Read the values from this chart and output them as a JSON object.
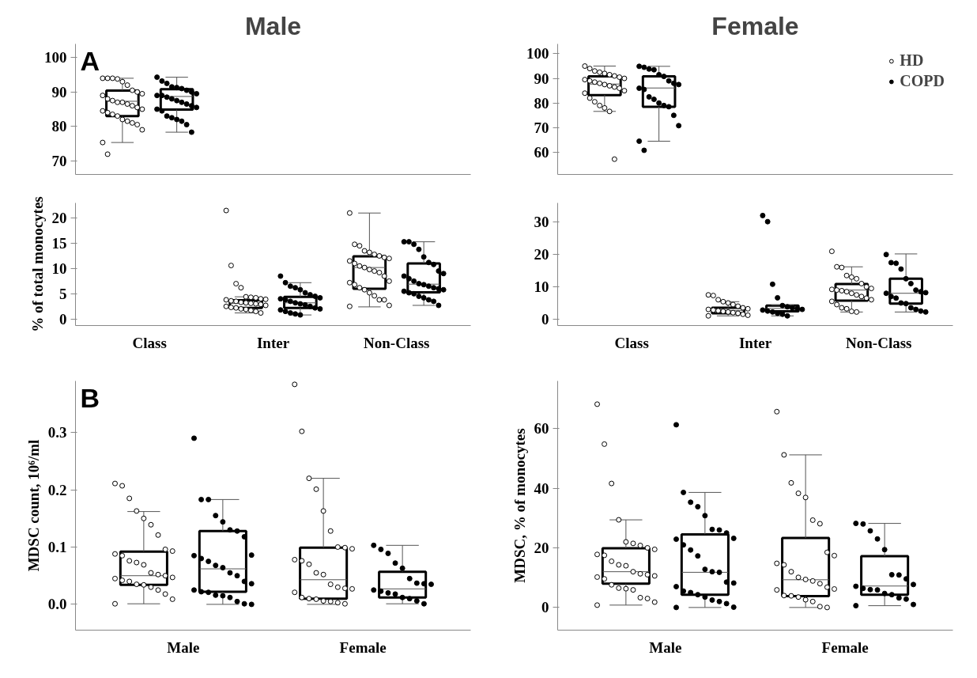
{
  "chart_data": [
    {
      "type": "box",
      "title": "Male",
      "annotations": [
        "A"
      ],
      "categories": [
        "Class",
        "Inter",
        "Non-Class"
      ],
      "ylim": [
        66,
        104
      ],
      "yticks": [
        70,
        80,
        90,
        100
      ],
      "tick_labels": "y",
      "marker": "circle",
      "series": [
        {
          "boxes": [
            {
              "low": 75.3,
              "q1": 83.0,
              "median": 87.3,
              "q3": 90.4,
              "high": 94
            },
            null,
            null
          ]
        },
        {
          "boxes": [
            {
              "low": 78.3,
              "q1": 84.9,
              "median": 88.7,
              "q3": 90.8,
              "high": 94.3
            },
            null,
            null
          ]
        },
        {
          "type": "scatter",
          "color": "#ffffff",
          "x": [
            "Class",
            "Class",
            "Class",
            "Class",
            "Class",
            "Class",
            "Class",
            "Class",
            "Class",
            "Class",
            "Class",
            "Class",
            "Class",
            "Class",
            "Class",
            "Class",
            "Class",
            "Class",
            "Class",
            "Class",
            "Class",
            "Class",
            "Class",
            "Class",
            "Class",
            "Class",
            "Class",
            "Class",
            "Class"
          ],
          "values": [
            94,
            94,
            94,
            93.8,
            93,
            92,
            90.5,
            90,
            89.5,
            89,
            88,
            87.5,
            87,
            87,
            86.5,
            86,
            85.5,
            85,
            84.5,
            84,
            83.5,
            83,
            82,
            81.5,
            81,
            80.5,
            79,
            75.3,
            71.9
          ]
        },
        {
          "type": "scatter",
          "color": "#000000",
          "x": [
            "Class",
            "Class",
            "Class",
            "Class",
            "Class",
            "Class",
            "Class",
            "Class",
            "Class",
            "Class",
            "Class",
            "Class",
            "Class",
            "Class",
            "Class",
            "Class",
            "Class",
            "Class",
            "Class",
            "Class",
            "Class",
            "Class",
            "Class",
            "Class",
            "Class",
            "Class"
          ],
          "values": [
            94.3,
            93.2,
            92.5,
            91.5,
            91.3,
            91,
            90.5,
            90,
            89.5,
            89,
            89,
            88.5,
            88,
            87.5,
            87,
            86.5,
            86,
            85.5,
            85,
            84.5,
            83,
            82.5,
            82,
            81.5,
            80.5,
            78.3
          ]
        }
      ]
    },
    {
      "type": "box",
      "ylabel": "% of total monocytes",
      "categories": [
        "Class",
        "Inter",
        "Non-Class"
      ],
      "ylim": [
        -1.3,
        23
      ],
      "yticks": [
        0,
        5,
        10,
        15,
        20
      ],
      "marker": "circle",
      "series": [
        {
          "boxes": [
            null,
            {
              "low": 1.2,
              "q1": 2.2,
              "median": 3.1,
              "q3": 3.7,
              "high": 4.4
            },
            {
              "low": 2.4,
              "q1": 6.0,
              "median": 10.2,
              "q3": 12.4,
              "high": 21
            }
          ]
        },
        {
          "boxes": [
            null,
            {
              "low": 0.8,
              "q1": 2.2,
              "median": 3.2,
              "q3": 4.4,
              "high": 7.2
            },
            {
              "low": 2.7,
              "q1": 5.3,
              "median": 6.9,
              "q3": 11.0,
              "high": 15.3
            }
          ]
        },
        {
          "type": "scatter",
          "color": "#ffffff",
          "x": [
            "Inter",
            "Inter",
            "Inter",
            "Inter",
            "Inter",
            "Inter",
            "Inter",
            "Inter",
            "Inter",
            "Inter",
            "Inter",
            "Inter",
            "Inter",
            "Inter",
            "Inter",
            "Inter",
            "Inter",
            "Inter",
            "Inter",
            "Inter",
            "Inter",
            "Inter",
            "Inter",
            "Inter",
            "Inter",
            "Inter",
            "Non-Class",
            "Non-Class",
            "Non-Class",
            "Non-Class",
            "Non-Class",
            "Non-Class",
            "Non-Class",
            "Non-Class",
            "Non-Class",
            "Non-Class",
            "Non-Class",
            "Non-Class",
            "Non-Class",
            "Non-Class",
            "Non-Class",
            "Non-Class",
            "Non-Class",
            "Non-Class",
            "Non-Class",
            "Non-Class",
            "Non-Class",
            "Non-Class",
            "Non-Class",
            "Non-Class",
            "Non-Class",
            "Non-Class",
            "Non-Class",
            "Non-Class"
          ],
          "values": [
            21.5,
            10.6,
            7.0,
            6.2,
            4.4,
            4.3,
            4.2,
            4.0,
            3.9,
            3.8,
            3.6,
            3.5,
            3.3,
            3.2,
            3.1,
            3.0,
            2.9,
            2.7,
            2.5,
            2.3,
            2.2,
            2.0,
            1.9,
            1.7,
            1.5,
            1.2,
            21,
            14.8,
            14.5,
            13.5,
            13.2,
            12.8,
            12.5,
            12.2,
            12,
            11.5,
            11,
            10.5,
            10.2,
            9.8,
            9.5,
            9.2,
            8.5,
            7.5,
            7.2,
            6.8,
            6.2,
            5.8,
            5.2,
            4.6,
            3.8,
            3.8,
            2.7,
            2.5
          ]
        },
        {
          "type": "scatter",
          "color": "#000000",
          "x": [
            "Inter",
            "Inter",
            "Inter",
            "Inter",
            "Inter",
            "Inter",
            "Inter",
            "Inter",
            "Inter",
            "Inter",
            "Inter",
            "Inter",
            "Inter",
            "Inter",
            "Inter",
            "Inter",
            "Inter",
            "Inter",
            "Inter",
            "Inter",
            "Inter",
            "Inter",
            "Inter",
            "Non-Class",
            "Non-Class",
            "Non-Class",
            "Non-Class",
            "Non-Class",
            "Non-Class",
            "Non-Class",
            "Non-Class",
            "Non-Class",
            "Non-Class",
            "Non-Class",
            "Non-Class",
            "Non-Class",
            "Non-Class",
            "Non-Class",
            "Non-Class",
            "Non-Class",
            "Non-Class",
            "Non-Class",
            "Non-Class",
            "Non-Class",
            "Non-Class",
            "Non-Class",
            "Non-Class",
            "Non-Class",
            "Non-Class"
          ],
          "values": [
            8.5,
            7.2,
            6.5,
            6.2,
            5.8,
            5.2,
            4.8,
            4.5,
            4.2,
            4.0,
            3.8,
            3.5,
            3.2,
            3.0,
            2.8,
            2.5,
            2.2,
            2.0,
            1.8,
            1.5,
            1.2,
            1.0,
            0.8,
            15.3,
            15.3,
            14.8,
            13.8,
            12.3,
            11.2,
            10.8,
            9.5,
            9.0,
            8.5,
            8.0,
            7.5,
            7.0,
            6.8,
            6.5,
            6.2,
            6.0,
            5.8,
            5.5,
            5.2,
            5.0,
            4.5,
            4.2,
            3.8,
            3.5,
            2.7
          ]
        }
      ]
    },
    {
      "type": "box",
      "title": "Female",
      "categories": [
        "Class",
        "Inter",
        "Non-Class"
      ],
      "ylim": [
        51,
        104
      ],
      "yticks": [
        60,
        70,
        80,
        90,
        100
      ],
      "tick_labels": "y",
      "marker": "circle",
      "legend": "top right",
      "series": [
        {
          "boxes": [
            {
              "low": 76.6,
              "q1": 83.2,
              "median": 87.7,
              "q3": 90.8,
              "high": 95
            },
            null,
            null
          ]
        },
        {
          "boxes": [
            {
              "low": 64.5,
              "q1": 78.5,
              "median": 86.1,
              "q3": 90.8,
              "high": 94.9
            },
            null,
            null
          ]
        },
        {
          "type": "scatter",
          "name": "HD",
          "color": "#ffffff",
          "x": [
            "Class",
            "Class",
            "Class",
            "Class",
            "Class",
            "Class",
            "Class",
            "Class",
            "Class",
            "Class",
            "Class",
            "Class",
            "Class",
            "Class",
            "Class",
            "Class",
            "Class",
            "Class",
            "Class",
            "Class",
            "Class",
            "Class",
            "Class",
            "Class",
            "Class"
          ],
          "values": [
            95,
            94,
            93,
            92.5,
            92,
            91.5,
            91,
            90.5,
            90,
            89.5,
            89,
            88.5,
            88,
            87.5,
            87,
            86.5,
            86,
            85,
            84,
            82,
            80.5,
            79,
            78,
            76.6,
            57.2
          ]
        },
        {
          "type": "scatter",
          "name": "COPD",
          "color": "#000000",
          "x": [
            "Class",
            "Class",
            "Class",
            "Class",
            "Class",
            "Class",
            "Class",
            "Class",
            "Class",
            "Class",
            "Class",
            "Class",
            "Class",
            "Class",
            "Class",
            "Class",
            "Class",
            "Class",
            "Class",
            "Class"
          ],
          "values": [
            94.9,
            94.5,
            93.8,
            93.5,
            91.5,
            90.8,
            89,
            88,
            87.5,
            86,
            85.5,
            82.5,
            81.5,
            80,
            79,
            78.5,
            75,
            70.8,
            64.5,
            60.8
          ]
        }
      ]
    },
    {
      "type": "box",
      "categories": [
        "Class",
        "Inter",
        "Non-Class"
      ],
      "ylim": [
        -2,
        36
      ],
      "yticks": [
        0,
        10,
        20,
        30
      ],
      "marker": "circle",
      "series": [
        {
          "boxes": [
            null,
            {
              "low": 1.0,
              "q1": 1.8,
              "median": 2.7,
              "q3": 3.5,
              "high": 5.4
            },
            {
              "low": 2.2,
              "q1": 5.7,
              "median": 9.0,
              "q3": 10.9,
              "high": 16.2
            }
          ]
        },
        {
          "boxes": [
            null,
            {
              "low": 1.0,
              "q1": 2.4,
              "median": 3.3,
              "q3": 4.2,
              "high": 4.4
            },
            {
              "low": 2.2,
              "q1": 4.8,
              "median": 8.0,
              "q3": 12.5,
              "high": 20.2
            }
          ]
        },
        {
          "type": "scatter",
          "color": "#ffffff",
          "x": [
            "Inter",
            "Inter",
            "Inter",
            "Inter",
            "Inter",
            "Inter",
            "Inter",
            "Inter",
            "Inter",
            "Inter",
            "Inter",
            "Inter",
            "Inter",
            "Inter",
            "Inter",
            "Inter",
            "Inter",
            "Inter",
            "Inter",
            "Non-Class",
            "Non-Class",
            "Non-Class",
            "Non-Class",
            "Non-Class",
            "Non-Class",
            "Non-Class",
            "Non-Class",
            "Non-Class",
            "Non-Class",
            "Non-Class",
            "Non-Class",
            "Non-Class",
            "Non-Class",
            "Non-Class",
            "Non-Class",
            "Non-Class",
            "Non-Class",
            "Non-Class",
            "Non-Class",
            "Non-Class",
            "Non-Class",
            "Non-Class",
            "Non-Class"
          ],
          "values": [
            7.5,
            7.3,
            6.0,
            5.4,
            5.0,
            4.5,
            4.0,
            3.5,
            3.2,
            3.0,
            2.8,
            2.6,
            2.4,
            2.2,
            2.0,
            1.8,
            1.5,
            1.2,
            1.0,
            21,
            16.2,
            16,
            13.5,
            13,
            12.5,
            11,
            10,
            9.5,
            9.2,
            9.0,
            8.8,
            8.5,
            8.0,
            7.5,
            7.0,
            6.5,
            6.0,
            5.5,
            4.5,
            3.5,
            3.2,
            2.4,
            2.2
          ]
        },
        {
          "type": "scatter",
          "color": "#000000",
          "x": [
            "Inter",
            "Inter",
            "Inter",
            "Inter",
            "Inter",
            "Inter",
            "Inter",
            "Inter",
            "Inter",
            "Inter",
            "Inter",
            "Inter",
            "Inter",
            "Inter",
            "Inter",
            "Non-Class",
            "Non-Class",
            "Non-Class",
            "Non-Class",
            "Non-Class",
            "Non-Class",
            "Non-Class",
            "Non-Class",
            "Non-Class",
            "Non-Class",
            "Non-Class",
            "Non-Class",
            "Non-Class",
            "Non-Class",
            "Non-Class",
            "Non-Class",
            "Non-Class",
            "Non-Class"
          ],
          "values": [
            32.1,
            30.2,
            10.8,
            6.6,
            4.2,
            3.8,
            3.5,
            3.2,
            3.0,
            2.8,
            2.5,
            2.2,
            1.8,
            1.5,
            1.0,
            20,
            17.5,
            17.3,
            15.5,
            12.5,
            11,
            9,
            8.5,
            8.2,
            8.0,
            7.0,
            6.5,
            5,
            4.8,
            3.5,
            3.0,
            2.5,
            2.2
          ]
        }
      ]
    },
    {
      "type": "box",
      "annotations": [
        "B"
      ],
      "ylabel": "MDSC count, 10⁶/ml",
      "categories": [
        "Male",
        "Female"
      ],
      "ylim": [
        -0.045,
        0.39
      ],
      "yticks": [
        {
          "value": 0,
          "label": "0.0"
        },
        0.1,
        0.2,
        0.3
      ],
      "marker": "circle",
      "series": [
        {
          "boxes": [
            {
              "low": 0.001,
              "q1": 0.034,
              "median": 0.05,
              "q3": 0.092,
              "high": 0.162
            },
            {
              "low": 0.0,
              "q1": 0.01,
              "median": 0.043,
              "q3": 0.099,
              "high": 0.22
            }
          ]
        },
        {
          "boxes": [
            {
              "low": 0.0,
              "q1": 0.022,
              "median": 0.062,
              "q3": 0.128,
              "high": 0.183
            },
            {
              "low": 0.001,
              "q1": 0.012,
              "median": 0.027,
              "q3": 0.057,
              "high": 0.103
            }
          ]
        },
        {
          "type": "scatter",
          "color": "#ffffff",
          "x": [
            "Male",
            "Male",
            "Male",
            "Male",
            "Male",
            "Male",
            "Male",
            "Male",
            "Male",
            "Male",
            "Male",
            "Male",
            "Male",
            "Male",
            "Male",
            "Male",
            "Male",
            "Male",
            "Male",
            "Male",
            "Male",
            "Male",
            "Male",
            "Male",
            "Male",
            "Male",
            "Male",
            "Male",
            "Female",
            "Female",
            "Female",
            "Female",
            "Female",
            "Female",
            "Female",
            "Female",
            "Female",
            "Female",
            "Female",
            "Female",
            "Female",
            "Female",
            "Female",
            "Female",
            "Female",
            "Female",
            "Female",
            "Female",
            "Female",
            "Female",
            "Female",
            "Female",
            "Female",
            "Female"
          ],
          "values": [
            0.211,
            0.207,
            0.185,
            0.163,
            0.15,
            0.139,
            0.121,
            0.096,
            0.093,
            0.088,
            0.085,
            0.076,
            0.073,
            0.069,
            0.055,
            0.052,
            0.05,
            0.047,
            0.045,
            0.042,
            0.04,
            0.035,
            0.034,
            0.03,
            0.025,
            0.018,
            0.009,
            0.001,
            0.384,
            0.302,
            0.22,
            0.201,
            0.163,
            0.128,
            0.1,
            0.099,
            0.097,
            0.078,
            0.076,
            0.07,
            0.055,
            0.052,
            0.035,
            0.03,
            0.028,
            0.027,
            0.021,
            0.012,
            0.01,
            0.009,
            0.006,
            0.005,
            0.003,
            0.001
          ]
        },
        {
          "type": "scatter",
          "color": "#000000",
          "x": [
            "Male",
            "Male",
            "Male",
            "Male",
            "Male",
            "Male",
            "Male",
            "Male",
            "Male",
            "Male",
            "Male",
            "Male",
            "Male",
            "Male",
            "Male",
            "Male",
            "Male",
            "Male",
            "Male",
            "Male",
            "Male",
            "Male",
            "Male",
            "Male",
            "Male",
            "Male",
            "Male",
            "Female",
            "Female",
            "Female",
            "Female",
            "Female",
            "Female",
            "Female",
            "Female",
            "Female",
            "Female",
            "Female",
            "Female",
            "Female",
            "Female",
            "Female",
            "Female",
            "Female"
          ],
          "values": [
            0.29,
            0.183,
            0.183,
            0.155,
            0.144,
            0.13,
            0.128,
            0.118,
            0.086,
            0.085,
            0.08,
            0.075,
            0.068,
            0.064,
            0.055,
            0.05,
            0.04,
            0.036,
            0.025,
            0.022,
            0.021,
            0.016,
            0.015,
            0.012,
            0.005,
            0.001,
            0.0,
            0.103,
            0.096,
            0.089,
            0.072,
            0.063,
            0.045,
            0.037,
            0.036,
            0.035,
            0.025,
            0.023,
            0.02,
            0.018,
            0.012,
            0.01,
            0.006,
            0.001
          ]
        }
      ]
    },
    {
      "type": "box",
      "ylabel": "MDSC, % of monocytes",
      "categories": [
        "Male",
        "Female"
      ],
      "ylim": [
        -7.6,
        76
      ],
      "yticks": [
        0,
        20,
        40,
        60
      ],
      "marker": "circle",
      "series": [
        {
          "boxes": [
            {
              "low": 0.8,
              "q1": 8.0,
              "median": 12.0,
              "q3": 19.9,
              "high": 29.4
            },
            {
              "low": 0,
              "q1": 3.8,
              "median": 9.3,
              "q3": 23.3,
              "high": 51.2
            }
          ]
        },
        {
          "boxes": [
            {
              "low": 0,
              "q1": 4.3,
              "median": 11.8,
              "q3": 24.5,
              "high": 38.6
            },
            {
              "low": 0.6,
              "q1": 4.3,
              "median": 7.2,
              "q3": 17.2,
              "high": 28.2
            }
          ]
        },
        {
          "type": "scatter",
          "color": "#ffffff",
          "x": [
            "Male",
            "Male",
            "Male",
            "Male",
            "Male",
            "Male",
            "Male",
            "Male",
            "Male",
            "Male",
            "Male",
            "Male",
            "Male",
            "Male",
            "Male",
            "Male",
            "Male",
            "Male",
            "Male",
            "Male",
            "Male",
            "Male",
            "Male",
            "Male",
            "Male",
            "Male",
            "Male",
            "Male",
            "Female",
            "Female",
            "Female",
            "Female",
            "Female",
            "Female",
            "Female",
            "Female",
            "Female",
            "Female",
            "Female",
            "Female",
            "Female",
            "Female",
            "Female",
            "Female",
            "Female",
            "Female",
            "Female",
            "Female",
            "Female",
            "Female",
            "Female",
            "Female",
            "Female",
            "Female"
          ],
          "values": [
            68.2,
            54.8,
            41.6,
            29.4,
            22,
            21.5,
            20.8,
            20,
            19.5,
            17.8,
            17.5,
            15.5,
            14.3,
            14,
            12,
            11.3,
            11,
            10.6,
            10.2,
            9.6,
            7.6,
            6.5,
            6.3,
            5.9,
            3.3,
            3,
            1.8,
            0.8,
            65.7,
            51.2,
            41.8,
            38.3,
            36.9,
            29.3,
            28.1,
            18.5,
            17.4,
            14.8,
            14.3,
            12,
            10.1,
            9.4,
            8.9,
            8,
            6.8,
            6.2,
            5.9,
            4,
            3.9,
            3.5,
            2.6,
            2,
            0.3,
            0
          ]
        },
        {
          "type": "scatter",
          "color": "#000000",
          "x": [
            "Male",
            "Male",
            "Male",
            "Male",
            "Male",
            "Male",
            "Male",
            "Male",
            "Male",
            "Male",
            "Male",
            "Male",
            "Male",
            "Male",
            "Male",
            "Male",
            "Male",
            "Male",
            "Male",
            "Male",
            "Male",
            "Male",
            "Male",
            "Male",
            "Male",
            "Male",
            "Male",
            "Male",
            "Female",
            "Female",
            "Female",
            "Female",
            "Female",
            "Female",
            "Female",
            "Female",
            "Female",
            "Female",
            "Female",
            "Female",
            "Female",
            "Female",
            "Female",
            "Female",
            "Female",
            "Female",
            "Female"
          ],
          "values": [
            61.3,
            38.6,
            35.3,
            33.8,
            30.8,
            26.2,
            26,
            25,
            23.2,
            22.9,
            21,
            19.3,
            17.3,
            12.8,
            12,
            11.8,
            8.5,
            8.2,
            7,
            5.5,
            5,
            4.3,
            3.5,
            2.5,
            2,
            1.3,
            0.1,
            0,
            28.2,
            28,
            25.7,
            23,
            19.4,
            11,
            10.9,
            9.6,
            7.7,
            7.1,
            6.4,
            6,
            5.9,
            4.7,
            4.3,
            3.2,
            2.8,
            1,
            0.6
          ]
        }
      ]
    }
  ]
}
